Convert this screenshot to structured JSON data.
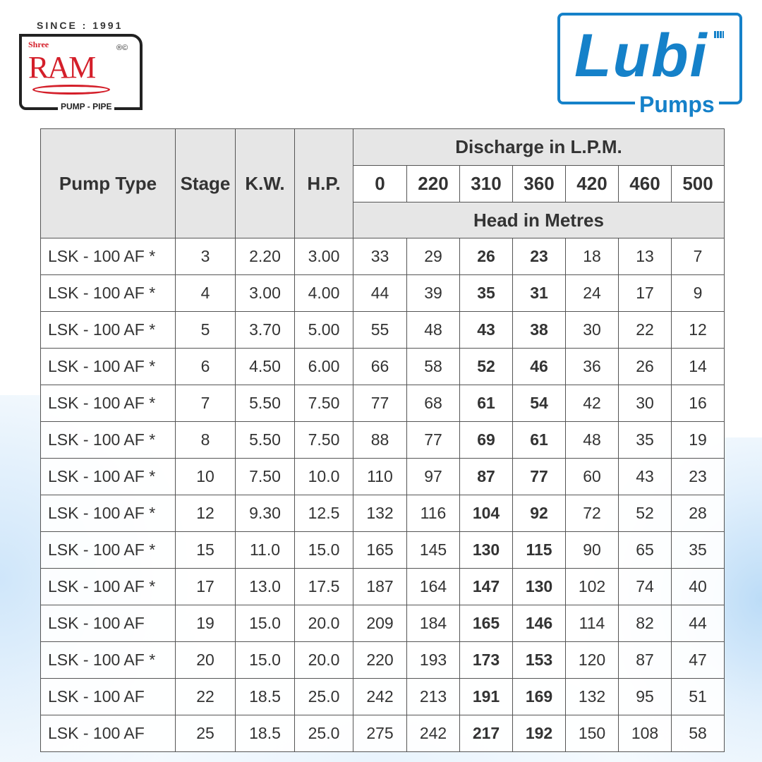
{
  "logos": {
    "ram": {
      "since": "SINCE : 1991",
      "prefix": "Shree",
      "name": "RAM",
      "marks": "®©",
      "tagline": "PUMP - PIPE"
    },
    "lubi": {
      "name": "Lubi",
      "tagline": "Pumps",
      "color": "#1581c9"
    }
  },
  "table": {
    "headers": {
      "pump_type": "Pump Type",
      "stage": "Stage",
      "kw": "K.W.",
      "hp": "H.P.",
      "discharge": "Discharge in L.P.M.",
      "head": "Head in Metres"
    },
    "discharge_lpm": [
      "0",
      "220",
      "310",
      "360",
      "420",
      "460",
      "500"
    ],
    "bold_columns": [
      "310",
      "360"
    ],
    "rows": [
      {
        "type": "LSK - 100 AF *",
        "stage": "3",
        "kw": "2.20",
        "hp": "3.00",
        "head": [
          "33",
          "29",
          "26",
          "23",
          "18",
          "13",
          "7"
        ]
      },
      {
        "type": "LSK - 100 AF *",
        "stage": "4",
        "kw": "3.00",
        "hp": "4.00",
        "head": [
          "44",
          "39",
          "35",
          "31",
          "24",
          "17",
          "9"
        ]
      },
      {
        "type": "LSK - 100 AF *",
        "stage": "5",
        "kw": "3.70",
        "hp": "5.00",
        "head": [
          "55",
          "48",
          "43",
          "38",
          "30",
          "22",
          "12"
        ]
      },
      {
        "type": "LSK - 100 AF *",
        "stage": "6",
        "kw": "4.50",
        "hp": "6.00",
        "head": [
          "66",
          "58",
          "52",
          "46",
          "36",
          "26",
          "14"
        ]
      },
      {
        "type": "LSK - 100 AF *",
        "stage": "7",
        "kw": "5.50",
        "hp": "7.50",
        "head": [
          "77",
          "68",
          "61",
          "54",
          "42",
          "30",
          "16"
        ]
      },
      {
        "type": "LSK - 100 AF *",
        "stage": "8",
        "kw": "5.50",
        "hp": "7.50",
        "head": [
          "88",
          "77",
          "69",
          "61",
          "48",
          "35",
          "19"
        ]
      },
      {
        "type": "LSK - 100 AF *",
        "stage": "10",
        "kw": "7.50",
        "hp": "10.0",
        "head": [
          "110",
          "97",
          "87",
          "77",
          "60",
          "43",
          "23"
        ]
      },
      {
        "type": "LSK - 100 AF *",
        "stage": "12",
        "kw": "9.30",
        "hp": "12.5",
        "head": [
          "132",
          "116",
          "104",
          "92",
          "72",
          "52",
          "28"
        ]
      },
      {
        "type": "LSK - 100 AF *",
        "stage": "15",
        "kw": "11.0",
        "hp": "15.0",
        "head": [
          "165",
          "145",
          "130",
          "115",
          "90",
          "65",
          "35"
        ]
      },
      {
        "type": "LSK - 100 AF *",
        "stage": "17",
        "kw": "13.0",
        "hp": "17.5",
        "head": [
          "187",
          "164",
          "147",
          "130",
          "102",
          "74",
          "40"
        ]
      },
      {
        "type": "LSK - 100 AF",
        "stage": "19",
        "kw": "15.0",
        "hp": "20.0",
        "head": [
          "209",
          "184",
          "165",
          "146",
          "114",
          "82",
          "44"
        ]
      },
      {
        "type": "LSK - 100 AF *",
        "stage": "20",
        "kw": "15.0",
        "hp": "20.0",
        "head": [
          "220",
          "193",
          "173",
          "153",
          "120",
          "87",
          "47"
        ]
      },
      {
        "type": "LSK - 100 AF",
        "stage": "22",
        "kw": "18.5",
        "hp": "25.0",
        "head": [
          "242",
          "213",
          "191",
          "169",
          "132",
          "95",
          "51"
        ]
      },
      {
        "type": "LSK - 100 AF",
        "stage": "25",
        "kw": "18.5",
        "hp": "25.0",
        "head": [
          "275",
          "242",
          "217",
          "192",
          "150",
          "108",
          "58"
        ]
      }
    ]
  }
}
